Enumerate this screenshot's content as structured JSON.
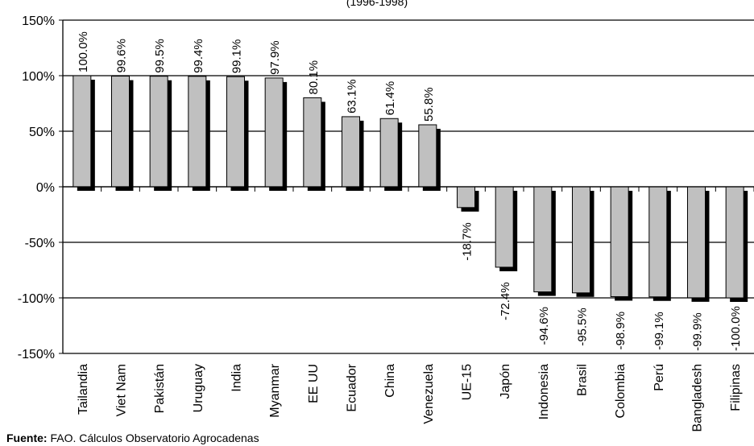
{
  "subtitle": "(1996-1998)",
  "source": {
    "label": "Fuente:",
    "text": "FAO. Cálculos Observatorio Agrocadenas"
  },
  "colors": {
    "bar_fill": "#c0c0c0",
    "bar_shadow": "#000000",
    "gridline": "#000000"
  },
  "chart_data": {
    "type": "bar",
    "title": "",
    "xlabel": "",
    "ylabel": "",
    "ylim": [
      -150,
      150
    ],
    "yticks": [
      150,
      100,
      50,
      0,
      -50,
      -100,
      -150
    ],
    "ytick_labels": [
      "150%",
      "100%",
      "50%",
      "0%",
      "-50%",
      "-100%",
      "-150%"
    ],
    "grid": true,
    "legend": "none",
    "categories": [
      "Tailandia",
      "Viet Nam",
      "Pakistán",
      "Uruguay",
      "India",
      "Myanmar",
      "EE UU",
      "Ecuador",
      "China",
      "Venezuela",
      "UE-15",
      "Japón",
      "Indonesia",
      "Brasil",
      "Colombia",
      "Perú",
      "Bangladesh",
      "Filipinas"
    ],
    "values": [
      100.0,
      99.6,
      99.5,
      99.4,
      99.1,
      97.9,
      80.1,
      63.1,
      61.4,
      55.8,
      -18.7,
      -72.4,
      -94.6,
      -95.5,
      -98.9,
      -99.1,
      -99.9,
      -100.0
    ],
    "value_labels": [
      "100.0%",
      "99.6%",
      "99.5%",
      "99.4%",
      "99.1%",
      "97.9%",
      "80.1%",
      "63.1%",
      "61.4%",
      "55.8%",
      "-18.7%",
      "-72.4%",
      "-94.6%",
      "-95.5%",
      "-98.9%",
      "-99.1%",
      "-99.9%",
      "-100.0%"
    ]
  }
}
